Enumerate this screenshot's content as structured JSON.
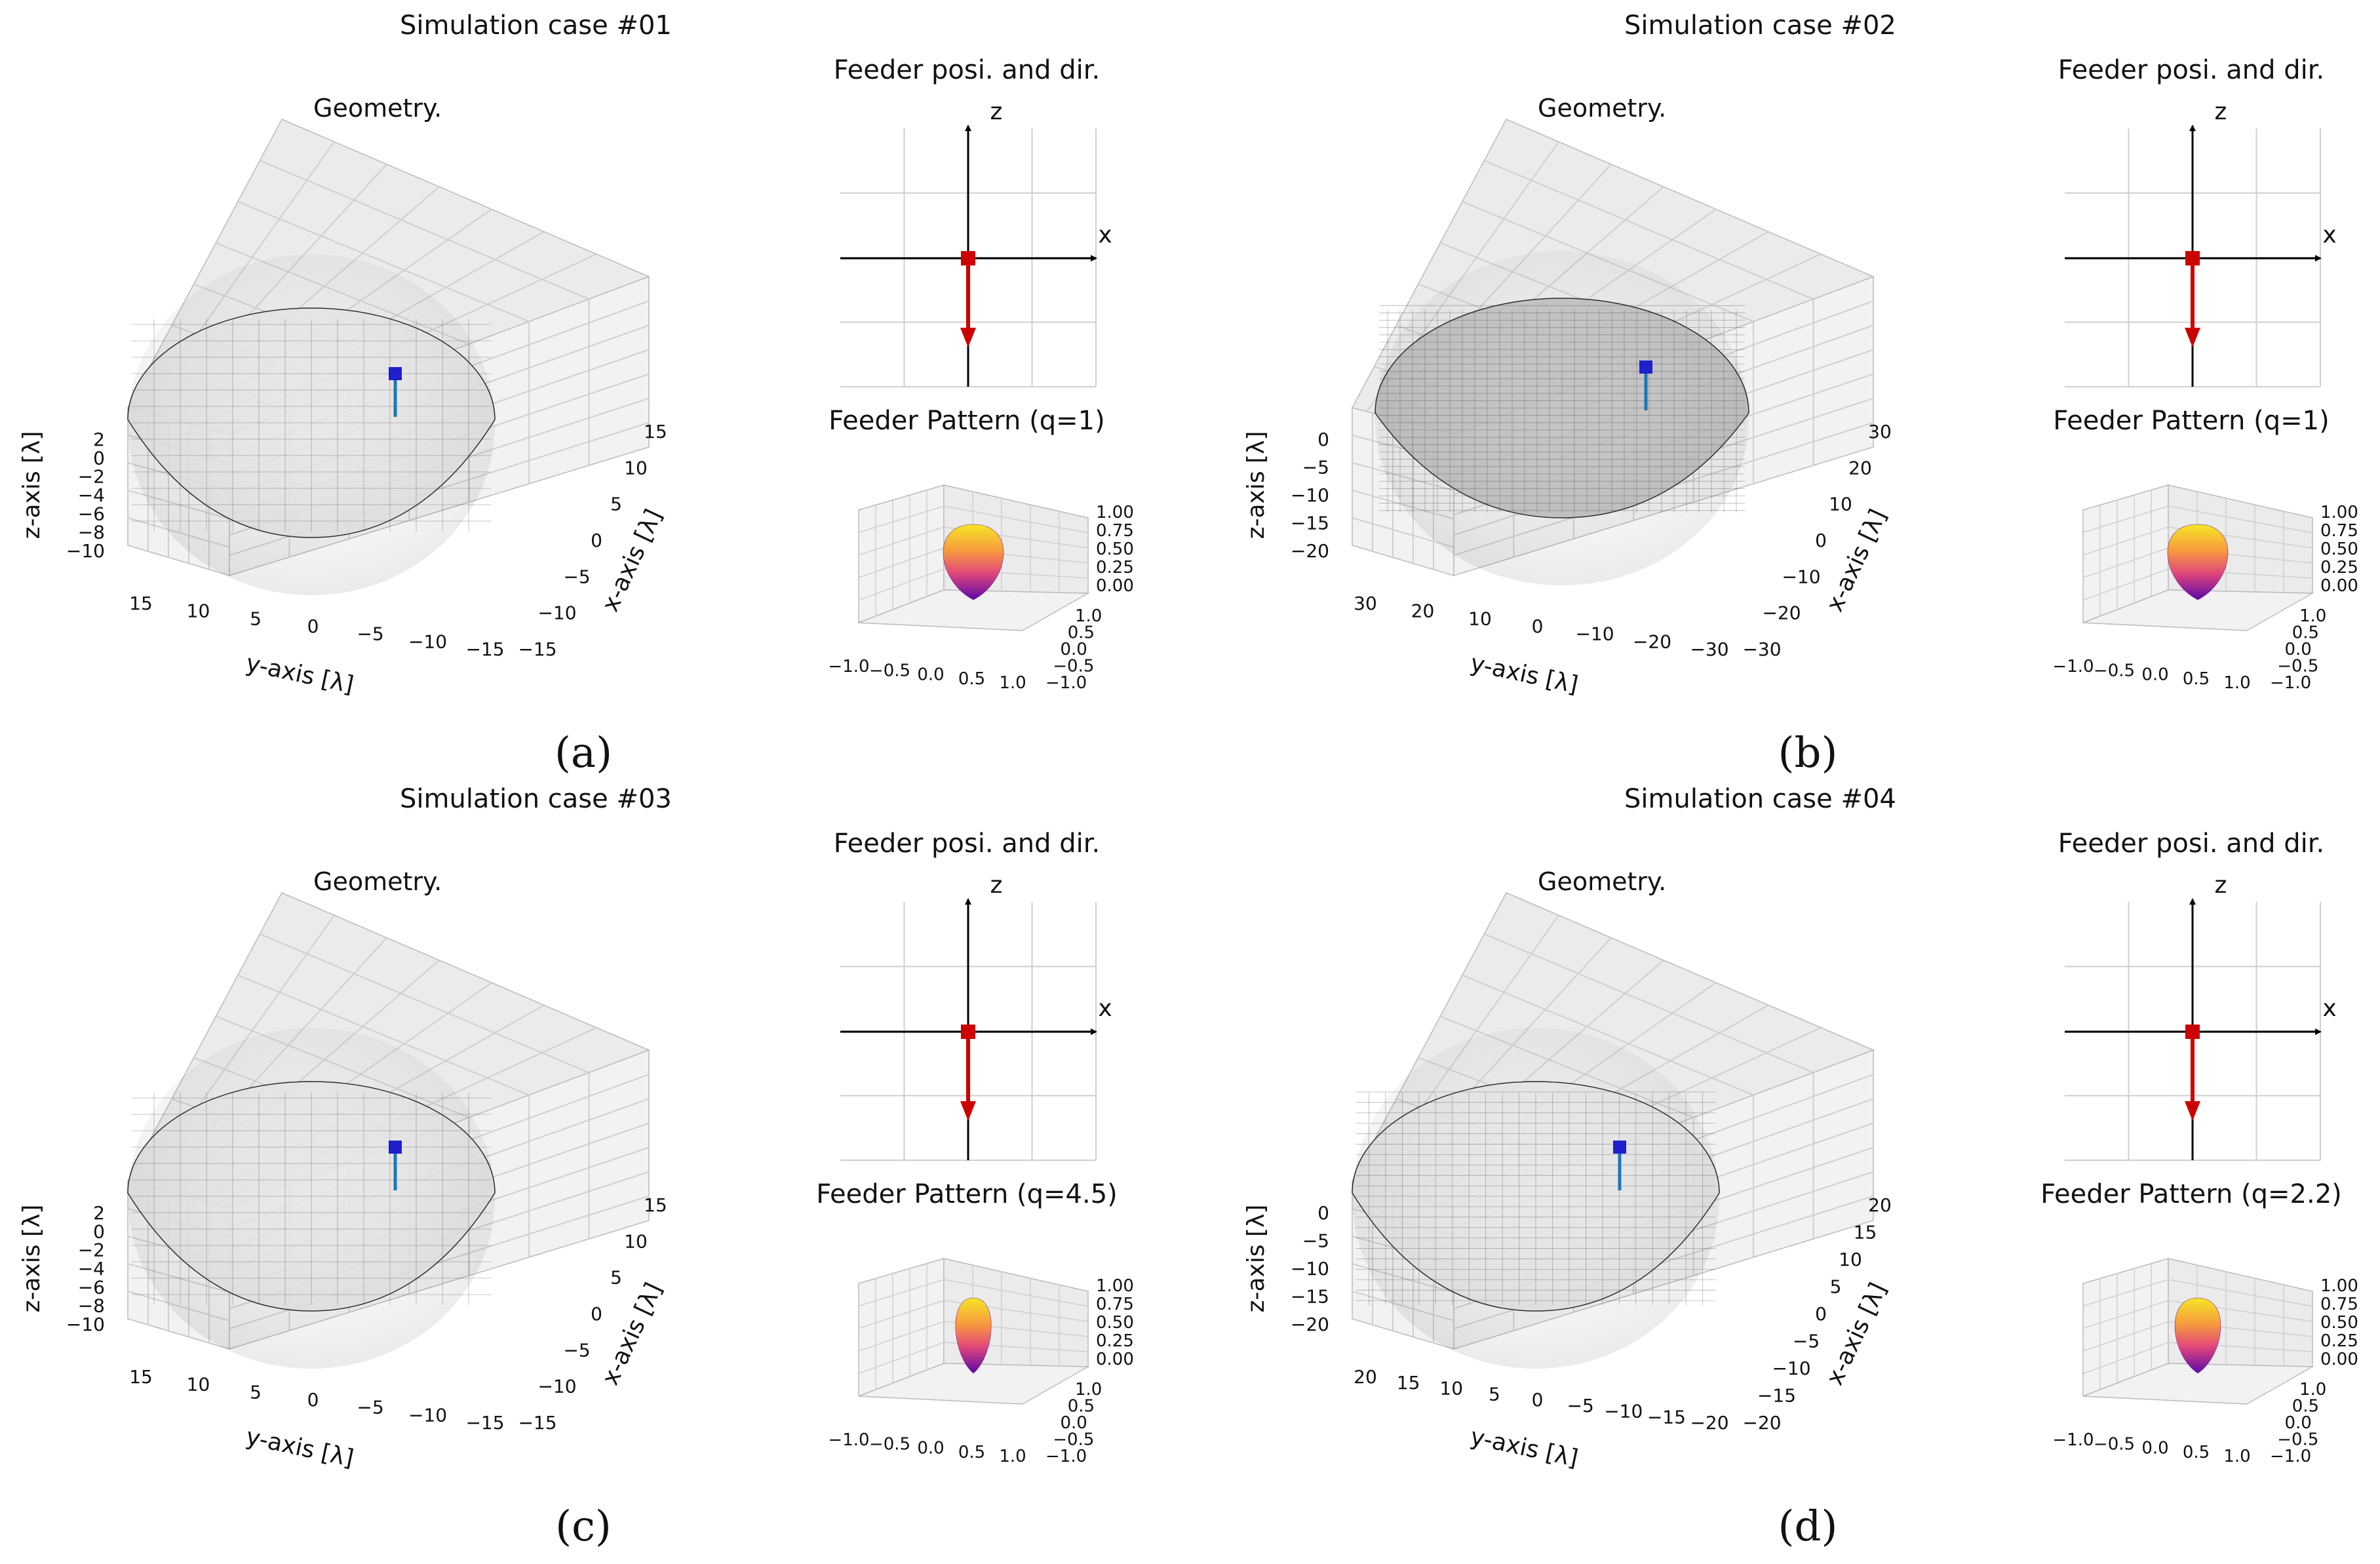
{
  "chart_data": [
    {
      "type": "3d-surface",
      "panel_label": "(a)",
      "title": "Simulation case #01",
      "geometry": {
        "title": "Geometry.",
        "xlabel": "x-axis [λ]",
        "ylabel": "y-axis [λ]",
        "zlabel": "z-axis [λ]",
        "x_ticks": [
          "15",
          "10",
          "5",
          "0",
          "−5",
          "−10",
          "−15"
        ],
        "y_ticks": [
          "15",
          "10",
          "5",
          "0",
          "−5",
          "−10",
          "−15"
        ],
        "z_ticks": [
          "2",
          "0",
          "−2",
          "−4",
          "−6",
          "−8",
          "−10"
        ],
        "mesh": "medium"
      },
      "feeder_pos": {
        "title": "Feeder posi. and dir.",
        "x_axis_label": "x",
        "z_axis_label": "z",
        "direction": "-z"
      },
      "feeder_pattern": {
        "title": "Feeder Pattern (q=1)",
        "q": 1,
        "x_ticks": [
          "−1.0",
          "−0.5",
          "0.0",
          "0.5",
          "1.0"
        ],
        "y_ticks": [
          "1.0",
          "0.5",
          "0.0",
          "−0.5",
          "−1.0"
        ],
        "z_ticks": [
          "1.00",
          "0.75",
          "0.50",
          "0.25",
          "0.00"
        ]
      }
    },
    {
      "type": "3d-surface",
      "panel_label": "(b)",
      "title": "Simulation case #02",
      "geometry": {
        "title": "Geometry.",
        "xlabel": "x-axis [λ]",
        "ylabel": "y-axis [λ]",
        "zlabel": "z-axis [λ]",
        "x_ticks": [
          "30",
          "20",
          "10",
          "0",
          "−10",
          "−20",
          "−30"
        ],
        "y_ticks": [
          "30",
          "20",
          "10",
          "0",
          "−10",
          "−20",
          "−30"
        ],
        "z_ticks": [
          "0",
          "−5",
          "−10",
          "−15",
          "−20"
        ],
        "mesh": "dense"
      },
      "feeder_pos": {
        "title": "Feeder posi. and dir.",
        "x_axis_label": "x",
        "z_axis_label": "z",
        "direction": "-z"
      },
      "feeder_pattern": {
        "title": "Feeder Pattern (q=1)",
        "q": 1,
        "x_ticks": [
          "−1.0",
          "−0.5",
          "0.0",
          "0.5",
          "1.0"
        ],
        "y_ticks": [
          "1.0",
          "0.5",
          "0.0",
          "−0.5",
          "−1.0"
        ],
        "z_ticks": [
          "1.00",
          "0.75",
          "0.50",
          "0.25",
          "0.00"
        ]
      }
    },
    {
      "type": "3d-surface",
      "panel_label": "(c)",
      "title": "Simulation case #03",
      "geometry": {
        "title": "Geometry.",
        "xlabel": "x-axis [λ]",
        "ylabel": "y-axis [λ]",
        "zlabel": "z-axis [λ]",
        "x_ticks": [
          "15",
          "10",
          "5",
          "0",
          "−5",
          "−10",
          "−15"
        ],
        "y_ticks": [
          "15",
          "10",
          "5",
          "0",
          "−5",
          "−10",
          "−15"
        ],
        "z_ticks": [
          "2",
          "0",
          "−2",
          "−4",
          "−6",
          "−8",
          "−10"
        ],
        "mesh": "medium"
      },
      "feeder_pos": {
        "title": "Feeder posi. and dir.",
        "x_axis_label": "x",
        "z_axis_label": "z",
        "direction": "-z"
      },
      "feeder_pattern": {
        "title": "Feeder Pattern (q=4.5)",
        "q": 4.5,
        "x_ticks": [
          "−1.0",
          "−0.5",
          "0.0",
          "0.5",
          "1.0"
        ],
        "y_ticks": [
          "1.0",
          "0.5",
          "0.0",
          "−0.5",
          "−1.0"
        ],
        "z_ticks": [
          "1.00",
          "0.75",
          "0.50",
          "0.25",
          "0.00"
        ]
      }
    },
    {
      "type": "3d-surface",
      "panel_label": "(d)",
      "title": "Simulation case #04",
      "geometry": {
        "title": "Geometry.",
        "xlabel": "x-axis [λ]",
        "ylabel": "y-axis [λ]",
        "zlabel": "z-axis [λ]",
        "x_ticks": [
          "20",
          "15",
          "10",
          "5",
          "0",
          "−5",
          "−10",
          "−15",
          "−20"
        ],
        "y_ticks": [
          "20",
          "15",
          "10",
          "5",
          "0",
          "−5",
          "−10",
          "−15",
          "−20"
        ],
        "z_ticks": [
          "0",
          "−5",
          "−10",
          "−15",
          "−20"
        ],
        "mesh": "fine"
      },
      "feeder_pos": {
        "title": "Feeder posi. and dir.",
        "x_axis_label": "x",
        "z_axis_label": "z",
        "direction": "-z"
      },
      "feeder_pattern": {
        "title": "Feeder Pattern (q=2.2)",
        "q": 2.2,
        "x_ticks": [
          "−1.0",
          "−0.5",
          "0.0",
          "0.5",
          "1.0"
        ],
        "y_ticks": [
          "1.0",
          "0.5",
          "0.0",
          "−0.5",
          "−1.0"
        ],
        "z_ticks": [
          "1.00",
          "0.75",
          "0.50",
          "0.25",
          "0.00"
        ]
      }
    }
  ],
  "colors": {
    "pane": "#f2f2f2",
    "grid": "#cfcfcf",
    "mesh": "#2a2a2a",
    "feeder_marker": "#1f1fcc",
    "feeder_line": "#1f77b4",
    "feeder_pos_marker": "#cc0000",
    "direction_arrow": "#cc0000",
    "pattern_top": "#f6e626",
    "pattern_mid": "#ee5a5a",
    "pattern_bottom": "#5b09a8"
  }
}
